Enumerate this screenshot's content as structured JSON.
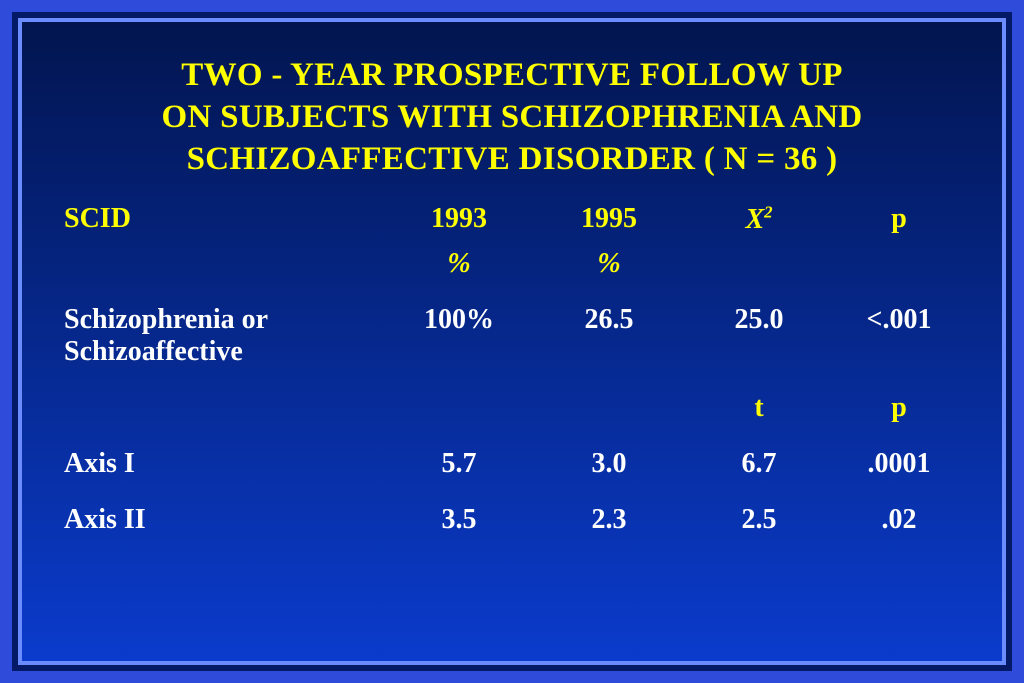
{
  "colors": {
    "frame_outer": "#2e4bd9",
    "frame_mid": "#041a66",
    "frame_inner": "#6b8cff",
    "bg_top": "#02154f",
    "bg_bottom": "#0a3bcc",
    "title": "#ffff00",
    "header": "#ffff00",
    "subheader": "#ffff00",
    "body_text": "#ffffff"
  },
  "title": {
    "line1": "TWO - YEAR PROSPECTIVE FOLLOW UP",
    "line2": "ON SUBJECTS WITH SCHIZOPHRENIA AND",
    "line3": "SCHIZOAFFECTIVE DISORDER ( N = 36 )",
    "fontsize": 33
  },
  "table": {
    "fontsize": 28,
    "headers": {
      "col1": "SCID",
      "col2": "1993",
      "col3": "1995",
      "col4_html": "X",
      "col4_sup": "2",
      "col5": "p"
    },
    "subheaders": {
      "col2": "%",
      "col3": "%"
    },
    "row1": {
      "label_l1": "Schizophrenia or",
      "label_l2": "Schizoaffective",
      "v1993": "100%",
      "v1995": "26.5",
      "stat": "25.0",
      "p": "<.001"
    },
    "subheaders2": {
      "col4": "t",
      "col5": "p"
    },
    "row2": {
      "label": "Axis I",
      "v1993": "5.7",
      "v1995": "3.0",
      "stat": "6.7",
      "p": ".0001"
    },
    "row3": {
      "label": "Axis II",
      "v1993": "3.5",
      "v1995": "2.3",
      "stat": "2.5",
      "p": ".02"
    }
  }
}
